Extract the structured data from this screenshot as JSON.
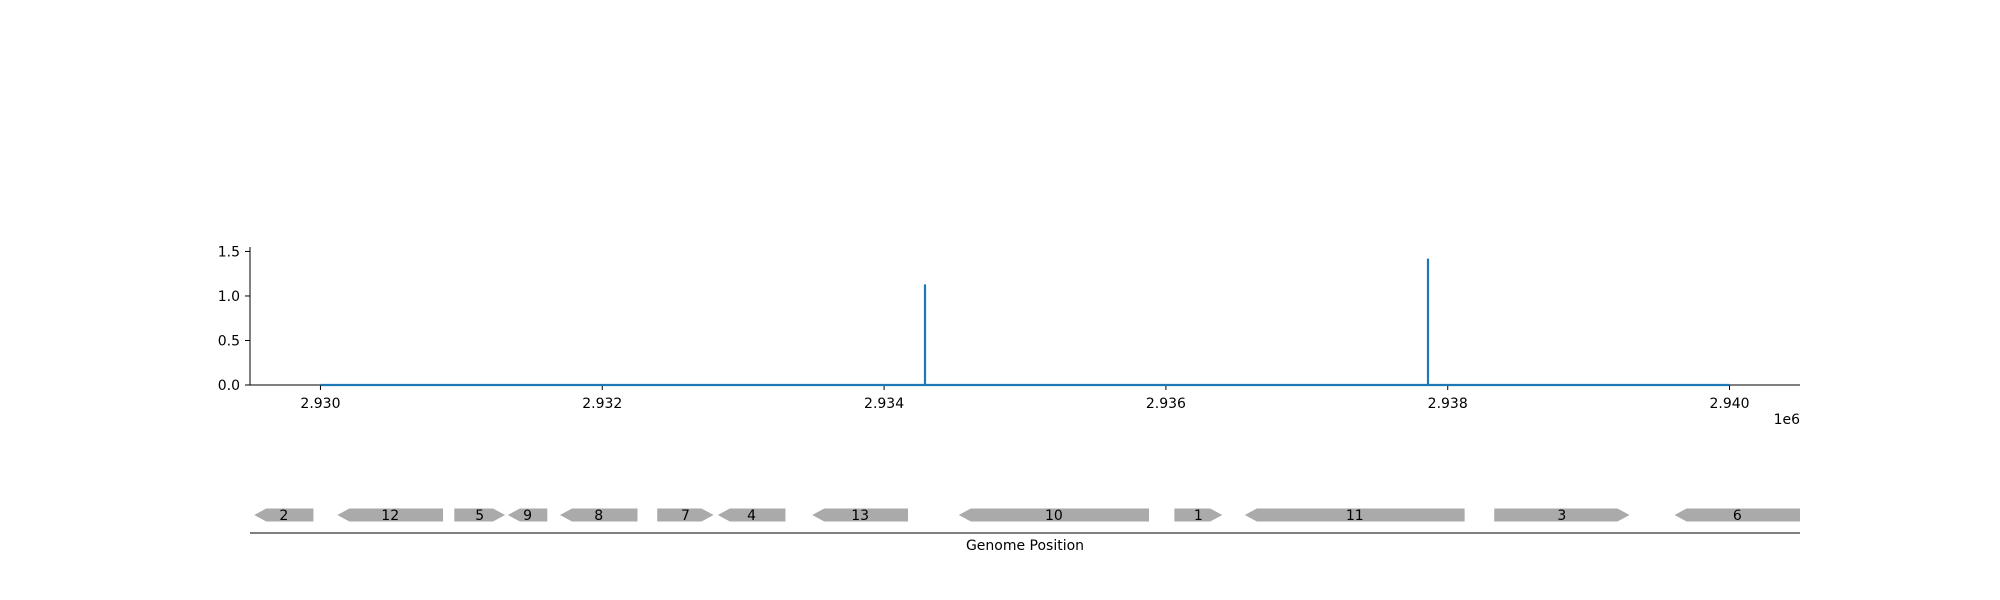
{
  "chart_data": {
    "type": "line",
    "x_offset_label": "1e6",
    "x_tick_labels": [
      "2.930",
      "2.932",
      "2.934",
      "2.936",
      "2.938",
      "2.940"
    ],
    "x_ticks": [
      2930000,
      2932000,
      2934000,
      2936000,
      2938000,
      2940000
    ],
    "y_tick_labels": [
      "0.0",
      "0.5",
      "1.0",
      "1.5"
    ],
    "y_ticks": [
      0,
      0.5,
      1.0,
      1.5
    ],
    "xlim": [
      2929500,
      2940500
    ],
    "ylim": [
      0,
      1.55
    ],
    "grid": false,
    "line_color": "#1f77b4",
    "series": [
      {
        "x": [
          2930000,
          2934290,
          2934290,
          2934290,
          2937860,
          2937860,
          2937860,
          2940000
        ],
        "y": [
          0,
          0,
          1.13,
          0,
          0,
          1.42,
          0,
          0
        ]
      }
    ],
    "genes": {
      "xlabel": "Genome Position",
      "color": "#aaaaaa",
      "items": [
        {
          "label": "2",
          "start": 2929530,
          "end": 2929950,
          "strand": "-"
        },
        {
          "label": "12",
          "start": 2930120,
          "end": 2930870,
          "strand": "-"
        },
        {
          "label": "5",
          "start": 2930950,
          "end": 2931310,
          "strand": "+"
        },
        {
          "label": "9",
          "start": 2931330,
          "end": 2931610,
          "strand": "-"
        },
        {
          "label": "8",
          "start": 2931700,
          "end": 2932250,
          "strand": "-"
        },
        {
          "label": "7",
          "start": 2932390,
          "end": 2932790,
          "strand": "+"
        },
        {
          "label": "4",
          "start": 2932820,
          "end": 2933300,
          "strand": "-"
        },
        {
          "label": "13",
          "start": 2933490,
          "end": 2934170,
          "strand": "-"
        },
        {
          "label": "10",
          "start": 2934530,
          "end": 2935880,
          "strand": "-"
        },
        {
          "label": "1",
          "start": 2936060,
          "end": 2936400,
          "strand": "+"
        },
        {
          "label": "11",
          "start": 2936560,
          "end": 2938120,
          "strand": "-"
        },
        {
          "label": "3",
          "start": 2938330,
          "end": 2939290,
          "strand": "+"
        },
        {
          "label": "6",
          "start": 2939610,
          "end": 2940500,
          "strand": "-"
        }
      ]
    }
  }
}
